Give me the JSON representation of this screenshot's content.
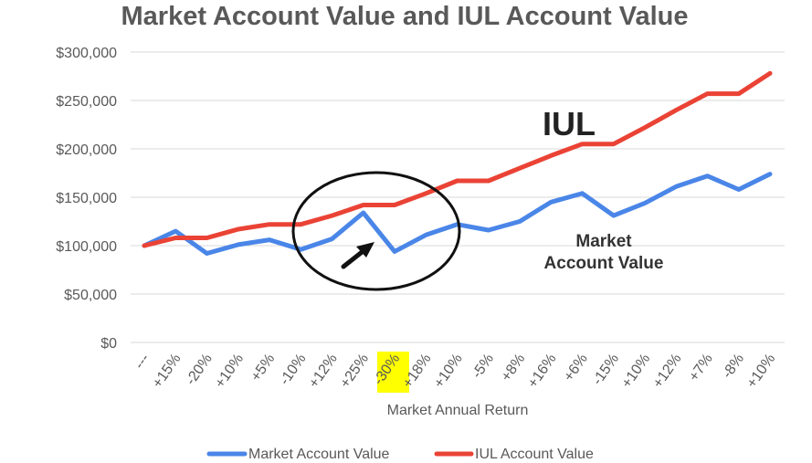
{
  "chart_data": {
    "type": "line",
    "title": "Market Account Value and IUL Account Value",
    "xlabel": "Market Annual Return",
    "ylabel": "",
    "ylim": [
      0,
      300000
    ],
    "yticks": [
      "$0",
      "$50,000",
      "$100,000",
      "$150,000",
      "$200,000",
      "$250,000",
      "$300,000"
    ],
    "ytick_values": [
      0,
      50000,
      100000,
      150000,
      200000,
      250000,
      300000
    ],
    "grid": true,
    "legend_position": "bottom",
    "categories": [
      "---",
      "+15%",
      "-20%",
      "+10%",
      "+5%",
      "-10%",
      "+12%",
      "+25%",
      "-30%",
      "+18%",
      "+10%",
      "-5%",
      "+8%",
      "+16%",
      "+6%",
      "-15%",
      "+10%",
      "+12%",
      "+7%",
      "-8%",
      "+10%"
    ],
    "highlight_category_index": 8,
    "highlight_color": "#ffff00",
    "series": [
      {
        "name": "Market Account Value",
        "color": "#4a86e8",
        "values": [
          100000,
          115000,
          92000,
          101000,
          106000,
          96000,
          107000,
          134000,
          94000,
          111000,
          122000,
          116000,
          125000,
          145000,
          154000,
          131000,
          144000,
          161000,
          172000,
          158000,
          174000
        ]
      },
      {
        "name": "IUL Account Value",
        "color": "#ea4335",
        "values": [
          100000,
          108000,
          108000,
          117000,
          122000,
          122000,
          131000,
          142000,
          142000,
          154000,
          167000,
          167000,
          180000,
          193000,
          205000,
          205000,
          222000,
          240000,
          257000,
          257000,
          278000
        ]
      }
    ],
    "annotations": {
      "iul_label": "IUL",
      "market_label_line1": "Market",
      "market_label_line2": "Account Value"
    }
  }
}
